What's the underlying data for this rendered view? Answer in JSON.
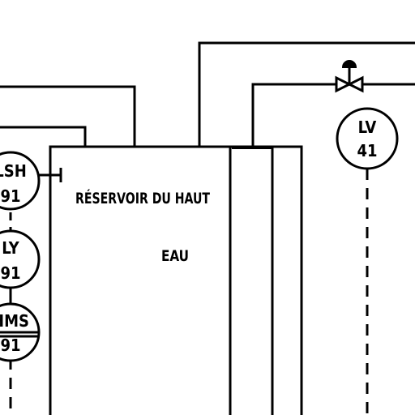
{
  "diagram": {
    "colors": {
      "line": "#000000",
      "background": "#ffffff"
    },
    "tank": {
      "title": "RÉSERVOIR DU HAUT",
      "content": "EAU"
    },
    "instruments": [
      {
        "id": "lsh91",
        "top": "LSH",
        "bottom": "91"
      },
      {
        "id": "ly91",
        "top": "LY",
        "bottom": "91"
      },
      {
        "id": "hms91",
        "top": "HMS",
        "bottom": "91"
      },
      {
        "id": "lv41",
        "top": "LV",
        "bottom": "41"
      }
    ],
    "valve": {
      "icon": "control-valve-icon"
    }
  }
}
